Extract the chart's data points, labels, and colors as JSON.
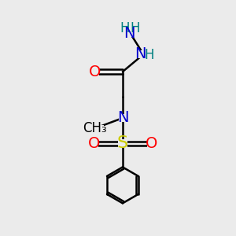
{
  "bg_color": "#ebebeb",
  "atom_colors": {
    "C": "#000000",
    "N": "#0000cc",
    "O": "#ff0000",
    "S": "#cccc00",
    "H": "#008080"
  },
  "bond_color": "#000000",
  "bond_width": 1.8,
  "font_size_label": 14,
  "font_size_H": 12,
  "font_size_S": 16,
  "font_size_methyl": 12
}
